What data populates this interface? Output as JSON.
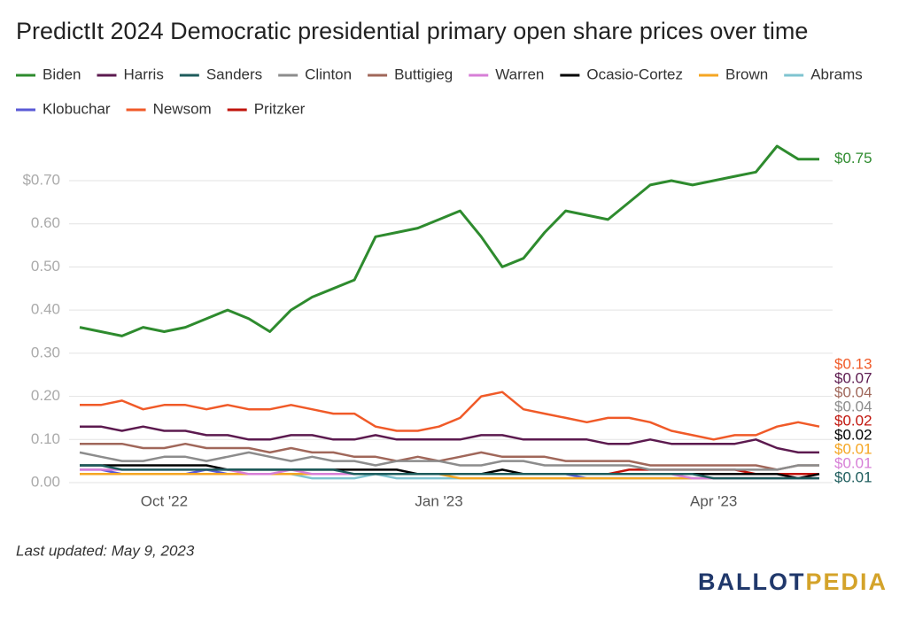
{
  "chart_data": {
    "type": "line",
    "title": "PredictIt 2024 Democratic presidential primary open share prices over time",
    "footnote": "Last updated: May 9, 2023",
    "logo_parts": [
      "BALLOT",
      "PEDIA"
    ],
    "categories": [
      null,
      null,
      null,
      null,
      "Oct '22",
      null,
      null,
      null,
      null,
      null,
      null,
      null,
      null,
      null,
      null,
      null,
      null,
      "Jan '23",
      null,
      null,
      null,
      null,
      null,
      null,
      null,
      null,
      null,
      null,
      null,
      null,
      "Apr '23",
      null,
      null,
      null,
      null,
      null
    ],
    "ylim": [
      0,
      0.8
    ],
    "yticks": [
      {
        "value": 0,
        "label": "0.00"
      },
      {
        "value": 0.1,
        "label": "0.10"
      },
      {
        "value": 0.2,
        "label": "0.20"
      },
      {
        "value": 0.3,
        "label": "0.30"
      },
      {
        "value": 0.4,
        "label": "0.40"
      },
      {
        "value": 0.5,
        "label": "0.50"
      },
      {
        "value": 0.6,
        "label": "0.60"
      },
      {
        "value": 0.7,
        "label": "$0.70"
      }
    ],
    "grid": true,
    "series": [
      {
        "name": "Biden",
        "color": "#2e8b2e",
        "end_label": "$0.75",
        "values": [
          0.36,
          0.35,
          0.34,
          0.36,
          0.35,
          0.36,
          0.38,
          0.4,
          0.38,
          0.35,
          0.4,
          0.43,
          0.45,
          0.47,
          0.57,
          0.58,
          0.59,
          0.61,
          0.63,
          0.57,
          0.5,
          0.52,
          0.58,
          0.63,
          0.62,
          0.61,
          0.65,
          0.69,
          0.7,
          0.69,
          0.7,
          0.71,
          0.72,
          0.78,
          0.75,
          0.75
        ]
      },
      {
        "name": "Harris",
        "color": "#5c1a4f",
        "end_label": "$0.07",
        "values": [
          0.13,
          0.13,
          0.12,
          0.13,
          0.12,
          0.12,
          0.11,
          0.11,
          0.1,
          0.1,
          0.11,
          0.11,
          0.1,
          0.1,
          0.11,
          0.1,
          0.1,
          0.1,
          0.1,
          0.11,
          0.11,
          0.1,
          0.1,
          0.1,
          0.1,
          0.09,
          0.09,
          0.1,
          0.09,
          0.09,
          0.09,
          0.09,
          0.1,
          0.08,
          0.07,
          0.07
        ]
      },
      {
        "name": "Sanders",
        "color": "#1d5c5c",
        "end_label": "$0.01",
        "values": [
          0.04,
          0.04,
          0.03,
          0.03,
          0.03,
          0.03,
          0.03,
          0.03,
          0.03,
          0.03,
          0.03,
          0.03,
          0.03,
          0.02,
          0.02,
          0.02,
          0.02,
          0.02,
          0.02,
          0.02,
          0.02,
          0.02,
          0.02,
          0.02,
          0.02,
          0.02,
          0.02,
          0.02,
          0.02,
          0.02,
          0.01,
          0.01,
          0.01,
          0.01,
          0.01,
          0.01
        ]
      },
      {
        "name": "Clinton",
        "color": "#8c8c8c",
        "end_label": "$0.04",
        "values": [
          0.07,
          0.06,
          0.05,
          0.05,
          0.06,
          0.06,
          0.05,
          0.06,
          0.07,
          0.06,
          0.05,
          0.06,
          0.05,
          0.05,
          0.04,
          0.05,
          0.05,
          0.05,
          0.04,
          0.04,
          0.05,
          0.05,
          0.04,
          0.04,
          0.04,
          0.04,
          0.04,
          0.03,
          0.03,
          0.03,
          0.03,
          0.03,
          0.03,
          0.03,
          0.04,
          0.04
        ]
      },
      {
        "name": "Buttigieg",
        "color": "#a0675a",
        "end_label": "$0.04",
        "values": [
          0.09,
          0.09,
          0.09,
          0.08,
          0.08,
          0.09,
          0.08,
          0.08,
          0.08,
          0.07,
          0.08,
          0.07,
          0.07,
          0.06,
          0.06,
          0.05,
          0.06,
          0.05,
          0.06,
          0.07,
          0.06,
          0.06,
          0.06,
          0.05,
          0.05,
          0.05,
          0.05,
          0.04,
          0.04,
          0.04,
          0.04,
          0.04,
          0.04,
          0.03,
          0.04,
          0.04
        ]
      },
      {
        "name": "Warren",
        "color": "#d77fd7",
        "end_label": "$0.01",
        "values": [
          0.03,
          0.03,
          0.03,
          0.03,
          0.03,
          0.03,
          0.03,
          0.03,
          0.02,
          0.02,
          0.03,
          0.02,
          0.02,
          0.02,
          0.02,
          0.02,
          0.02,
          0.02,
          0.02,
          0.02,
          0.02,
          0.02,
          0.02,
          0.02,
          0.02,
          0.02,
          0.02,
          0.02,
          0.02,
          0.01,
          0.01,
          0.01,
          0.01,
          0.01,
          0.01,
          0.01
        ]
      },
      {
        "name": "Ocasio-Cortez",
        "color": "#000000",
        "end_label": "$0.02",
        "values": [
          0.04,
          0.04,
          0.04,
          0.04,
          0.04,
          0.04,
          0.04,
          0.03,
          0.03,
          0.03,
          0.03,
          0.03,
          0.03,
          0.03,
          0.03,
          0.03,
          0.02,
          0.02,
          0.02,
          0.02,
          0.03,
          0.02,
          0.02,
          0.02,
          0.02,
          0.02,
          0.02,
          0.02,
          0.02,
          0.02,
          0.02,
          0.02,
          0.02,
          0.02,
          0.01,
          0.02
        ]
      },
      {
        "name": "Brown",
        "color": "#f5a623",
        "end_label": "$0.01",
        "values": [
          0.02,
          0.02,
          0.02,
          0.02,
          0.02,
          0.02,
          0.02,
          0.02,
          0.02,
          0.02,
          0.02,
          0.02,
          0.02,
          0.02,
          0.02,
          0.02,
          0.02,
          0.02,
          0.01,
          0.01,
          0.01,
          0.01,
          0.01,
          0.01,
          0.01,
          0.01,
          0.01,
          0.01,
          0.01,
          0.01,
          0.01,
          0.01,
          0.01,
          0.01,
          0.01,
          0.01
        ]
      },
      {
        "name": "Abrams",
        "color": "#7fc4d0",
        "values": [
          0.02,
          0.02,
          0.02,
          0.02,
          0.02,
          0.02,
          0.02,
          0.02,
          0.02,
          0.02,
          0.02,
          0.01,
          0.01,
          0.01,
          0.02,
          0.01,
          0.01,
          0.01,
          0.01,
          0.01,
          0.01,
          0.01,
          0.01,
          0.01,
          0.01,
          0.01,
          0.01,
          0.01,
          0.01,
          0.01,
          0.01,
          0.01,
          0.01,
          0.01,
          0.01,
          0.01
        ]
      },
      {
        "name": "Klobuchar",
        "color": "#5a5ad6",
        "values": [
          0.03,
          0.03,
          0.02,
          0.02,
          0.02,
          0.02,
          0.03,
          0.02,
          0.02,
          0.02,
          0.02,
          0.02,
          0.02,
          0.02,
          0.02,
          0.02,
          0.02,
          0.02,
          0.02,
          0.02,
          0.02,
          0.02,
          0.02,
          0.02,
          0.01,
          0.01,
          0.01,
          0.01,
          0.01,
          0.01,
          0.01,
          0.01,
          0.01,
          0.01,
          0.01,
          0.01
        ]
      },
      {
        "name": "Newsom",
        "color": "#f05a28",
        "end_label": "$0.13",
        "values": [
          0.18,
          0.18,
          0.19,
          0.17,
          0.18,
          0.18,
          0.17,
          0.18,
          0.17,
          0.17,
          0.18,
          0.17,
          0.16,
          0.16,
          0.13,
          0.12,
          0.12,
          0.13,
          0.15,
          0.2,
          0.21,
          0.17,
          0.16,
          0.15,
          0.14,
          0.15,
          0.15,
          0.14,
          0.12,
          0.11,
          0.1,
          0.11,
          0.11,
          0.13,
          0.14,
          0.13
        ]
      },
      {
        "name": "Pritzker",
        "color": "#c0140c",
        "end_label": "$0.02",
        "values": [
          0.02,
          0.02,
          0.02,
          0.02,
          0.02,
          0.02,
          0.02,
          0.02,
          0.02,
          0.02,
          0.02,
          0.02,
          0.02,
          0.02,
          0.02,
          0.02,
          0.02,
          0.02,
          0.02,
          0.02,
          0.02,
          0.02,
          0.02,
          0.02,
          0.02,
          0.02,
          0.03,
          0.03,
          0.03,
          0.03,
          0.03,
          0.03,
          0.02,
          0.02,
          0.02,
          0.02
        ]
      }
    ]
  }
}
